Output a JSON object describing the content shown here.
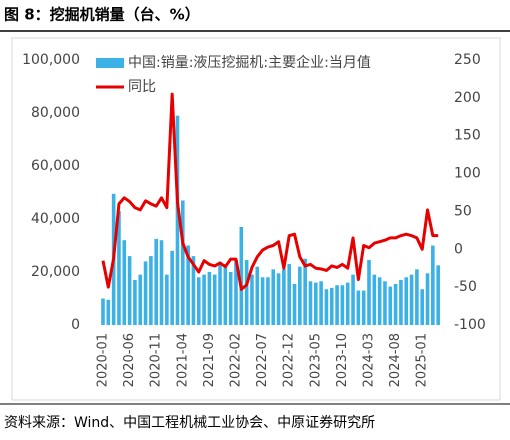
{
  "chart_data": {
    "type": "bar",
    "title": "图 8：挖掘机销量（台、%）",
    "categories": [
      "2020-01",
      null,
      null,
      null,
      null,
      "2020-06",
      null,
      null,
      null,
      null,
      "2020-11",
      null,
      null,
      null,
      null,
      "2021-04",
      null,
      null,
      null,
      null,
      "2021-09",
      null,
      null,
      null,
      null,
      "2022-02",
      null,
      null,
      null,
      null,
      "2022-07",
      null,
      null,
      null,
      null,
      "2022-12",
      null,
      null,
      null,
      null,
      "2023-05",
      null,
      null,
      null,
      null,
      "2023-10",
      null,
      null,
      null,
      null,
      "2024-03",
      null,
      null,
      null,
      null,
      "2024-08",
      null,
      null,
      null,
      null,
      "2025-01",
      null,
      null,
      null
    ],
    "series": [
      {
        "name": "中国:销量:液压挖掘机:主要企业:当月值",
        "color": "#3cb1e6",
        "type": "bar",
        "values": [
          10000,
          9500,
          49500,
          43000,
          32000,
          26000,
          17000,
          19000,
          24000,
          26000,
          32500,
          32000,
          19000,
          28000,
          79000,
          47000,
          30000,
          26000,
          18000,
          19000,
          20000,
          19000,
          23000,
          23000,
          20000,
          24500,
          37000,
          24500,
          19000,
          22000,
          18000,
          18000,
          21000,
          19500,
          21000,
          23000,
          15500,
          22000,
          25000,
          16500,
          16000,
          16500,
          13500,
          14000,
          15000,
          15000,
          16000,
          19000,
          13000,
          13000,
          24500,
          19000,
          18000,
          16500,
          14500,
          15500,
          17000,
          18000,
          19000,
          21000,
          13500,
          19500,
          30000,
          22500
        ]
      },
      {
        "name": "同比",
        "color": "#e60000",
        "type": "line",
        "axis": "y2",
        "values": [
          -15,
          -50,
          -12,
          60,
          68,
          63,
          55,
          52,
          64,
          60,
          57,
          68,
          55,
          205,
          62,
          8,
          -10,
          -20,
          -30,
          -15,
          -20,
          -22,
          -18,
          -23,
          -13,
          -13,
          -53,
          -47,
          -24,
          -10,
          -1,
          3,
          5,
          10,
          -25,
          18,
          20,
          -10,
          -22,
          -20,
          -25,
          -26,
          -28,
          -22,
          -24,
          -20,
          -25,
          15,
          -40,
          5,
          2,
          8,
          10,
          12,
          15,
          15,
          18,
          20,
          18,
          15,
          0,
          52,
          18,
          18
        ]
      }
    ],
    "ylim": [
      0,
      100000
    ],
    "yticks": [
      0,
      {
        "value": 20000,
        "label": "20,000"
      },
      {
        "value": 40000,
        "label": "40,000"
      },
      {
        "value": 60000,
        "label": "60,000"
      },
      {
        "value": 80000,
        "label": "80,000"
      },
      {
        "value": 100000,
        "label": "100,000"
      }
    ],
    "y2lim": [
      -100,
      250
    ],
    "y2ticks": [
      -100,
      -50,
      0,
      50,
      100,
      150,
      200,
      250
    ],
    "legend": "upper left"
  },
  "source": "资料来源：Wind、中国工程机械工业协会、中原证券研究所"
}
